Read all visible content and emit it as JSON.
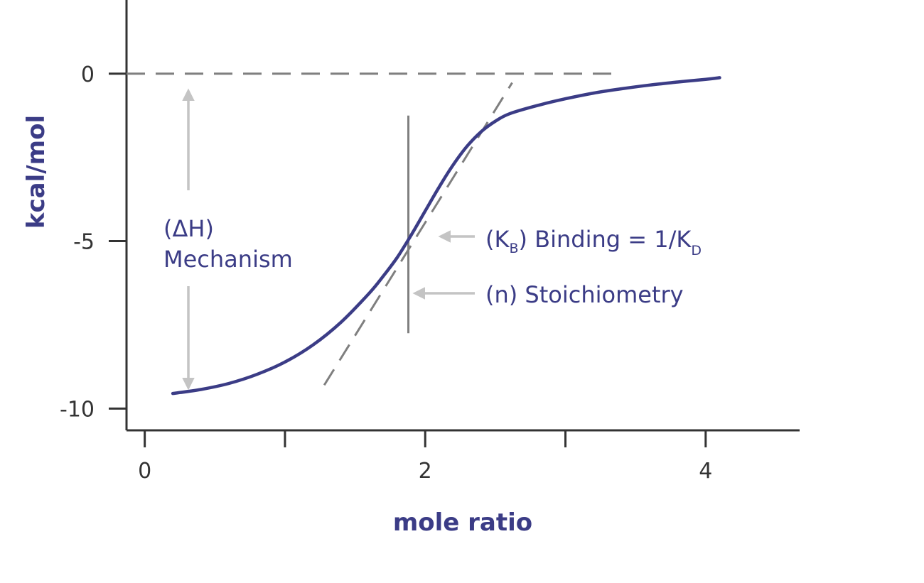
{
  "chart_data": {
    "type": "line",
    "xlabel": "mole ratio",
    "ylabel": "kcal/mol",
    "xlim": [
      -0.13,
      4.67
    ],
    "ylim": [
      -10.65,
      2.2
    ],
    "x_ticks": [
      0,
      1,
      2,
      3,
      4
    ],
    "x_tick_labels": [
      "0",
      "",
      "2",
      "",
      "4"
    ],
    "y_ticks": [
      0,
      -5,
      -10
    ],
    "y_tick_labels": [
      "0",
      "-5",
      "-10"
    ],
    "grid": false,
    "colors": {
      "curve": "#3b3c86",
      "reference": "#7f7f7f",
      "arrow": "#c4c4c4",
      "axis": "#333333",
      "text": "#3b3c86"
    },
    "series": [
      {
        "x": [
          0.2,
          0.4,
          0.6,
          0.8,
          1.0,
          1.2,
          1.4,
          1.6,
          1.7,
          1.8,
          1.9,
          2.0,
          2.1,
          2.2,
          2.3,
          2.4,
          2.5,
          2.6,
          2.8,
          3.0,
          3.2,
          3.4,
          3.6,
          3.8,
          4.0,
          4.1
        ],
        "y": [
          -9.55,
          -9.43,
          -9.25,
          -8.98,
          -8.61,
          -8.1,
          -7.42,
          -6.56,
          -6.05,
          -5.49,
          -4.82,
          -4.1,
          -3.38,
          -2.72,
          -2.16,
          -1.73,
          -1.42,
          -1.2,
          -0.95,
          -0.75,
          -0.58,
          -0.45,
          -0.34,
          -0.25,
          -0.17,
          -0.12
        ]
      }
    ],
    "zero_line": {
      "y": 0,
      "x_from": -0.13,
      "x_to": 3.35
    },
    "tangent_line": {
      "from": [
        1.28,
        -9.3
      ],
      "to": [
        2.62,
        -0.27
      ]
    },
    "stoichiometry_line": {
      "x": 1.88,
      "y_from": -1.25,
      "y_to": -7.75
    },
    "annotations": {
      "delta_h_line1": "(ΔH)",
      "delta_h_line2": "Mechanism",
      "binding_prefix": "(K",
      "binding_sub_b": "B",
      "binding_middle": ") Binding = 1/K",
      "binding_sub_d": "D",
      "stoichiometry": "(n) Stoichiometry"
    }
  }
}
